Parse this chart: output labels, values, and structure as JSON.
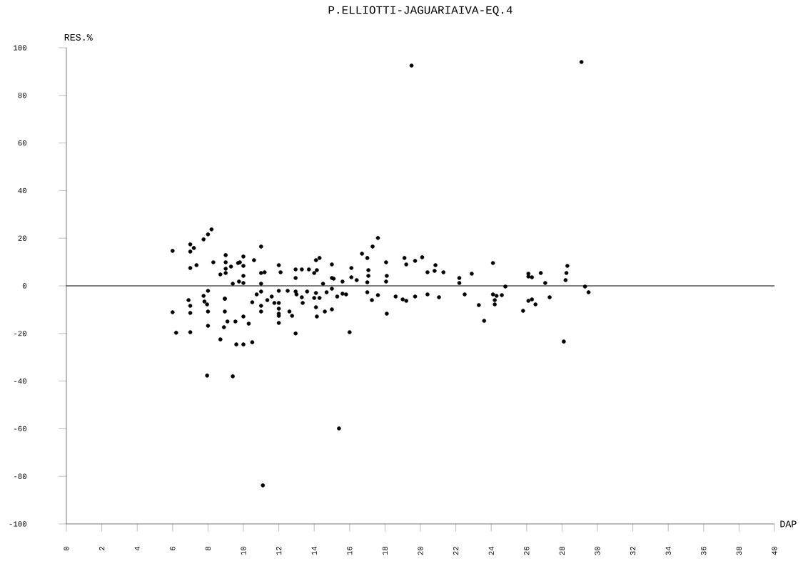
{
  "chart_data": {
    "type": "scatter",
    "title": "P.ELLIOTTI-JAGUARIAIVA-EQ.4",
    "xlabel": "DAP",
    "ylabel": "RES.%",
    "color": "#000000",
    "x": [
      6.0,
      6.0,
      6.2,
      7.0,
      7.0,
      7.2,
      7.0,
      7.35,
      6.9,
      7.0,
      7.0,
      7.0,
      7.75,
      8.0,
      8.2,
      8.3,
      7.75,
      7.8,
      7.95,
      8.0,
      8.0,
      8.0,
      7.95,
      8.7,
      9.0,
      9.0,
      9.0,
      9.0,
      9.3,
      9.7,
      9.8,
      9.75,
      8.95,
      9.4,
      10.0,
      10.0,
      10.0,
      10.0,
      10.6,
      11.0,
      11.0,
      11.2,
      11.0,
      11.0,
      10.75,
      10.5,
      11.0,
      11.0,
      8.95,
      8.95,
      9.1,
      8.9,
      8.7,
      9.55,
      9.6,
      10.0,
      10.0,
      10.3,
      10.5,
      9.4,
      11.35,
      11.6,
      11.75,
      12.0,
      12.1,
      12.0,
      12.0,
      12.0,
      12.0,
      12.0,
      12.0,
      12.5,
      12.6,
      12.75,
      12.95,
      12.95,
      12.95,
      13.0,
      13.3,
      13.3,
      13.35,
      12.95,
      13.7,
      14.1,
      14.15,
      14.0,
      14.1,
      14.15,
      14.0,
      14.3,
      13.6,
      14.1,
      14.3,
      14.6,
      14.5,
      14.7,
      15.0,
      15.0,
      15.1,
      15.0,
      15.3,
      15.0,
      15.6,
      15.6,
      15.8,
      16.0,
      16.1,
      16.1,
      16.4,
      16.7,
      17.0,
      17.3,
      17.6,
      17.06,
      17.06,
      17.0,
      17.0,
      17.26,
      17.6,
      18.06,
      18.1,
      18.06,
      18.1,
      18.6,
      19.0,
      19.2,
      19.1,
      19.2,
      19.7,
      19.7,
      20.1,
      20.4,
      20.4,
      20.85,
      20.8,
      21.05,
      21.3,
      22.2,
      22.2,
      22.5,
      22.9,
      23.3,
      23.6,
      24.1,
      24.1,
      24.3,
      24.2,
      24.2,
      24.6,
      24.8,
      25.8,
      26.1,
      26.1,
      26.3,
      26.1,
      26.3,
      26.5,
      26.8,
      27.05,
      27.3,
      28.3,
      28.25,
      28.2,
      28.1,
      29.3,
      29.5,
      19.5,
      29.1,
      15.4,
      11.1
    ],
    "values": [
      14.7,
      -11.1,
      -19.7,
      17.4,
      14.4,
      15.9,
      7.5,
      8.7,
      -6.0,
      -8.4,
      -11.4,
      -19.5,
      19.5,
      21.6,
      23.7,
      9.9,
      -4.2,
      -6.6,
      -7.8,
      -2.1,
      -10.8,
      -16.8,
      -37.7,
      4.8,
      12.9,
      9.9,
      7.2,
      5.4,
      8.1,
      9.6,
      9.9,
      1.8,
      -5.4,
      0.9,
      12.3,
      8.4,
      4.2,
      1.2,
      10.8,
      16.5,
      5.4,
      5.7,
      0.9,
      -2.4,
      -3.6,
      -6.9,
      -8.4,
      -10.8,
      -10.8,
      -5.4,
      -15.0,
      -17.4,
      -22.5,
      -15.0,
      -24.6,
      -12.9,
      -24.6,
      -15.9,
      -23.7,
      -38.0,
      -6.0,
      -4.5,
      -7.2,
      8.7,
      5.7,
      -2.1,
      -7.2,
      -9.6,
      -11.7,
      -12.6,
      -15.6,
      -2.1,
      -10.8,
      -12.6,
      6.9,
      3.3,
      -2.4,
      -3.6,
      6.9,
      -4.8,
      -7.2,
      -20.0,
      6.9,
      10.8,
      6.6,
      -5.1,
      -9.0,
      -12.9,
      5.4,
      11.7,
      -2.4,
      -3.0,
      -5.1,
      -10.8,
      0.9,
      -2.7,
      9.0,
      3.3,
      3.0,
      -1.2,
      -4.5,
      -9.9,
      1.8,
      -3.3,
      -3.6,
      -19.5,
      7.5,
      3.6,
      2.4,
      13.5,
      11.7,
      16.5,
      20.1,
      6.6,
      4.2,
      1.5,
      -2.7,
      -6.0,
      -3.9,
      9.9,
      4.2,
      1.8,
      -11.7,
      -4.5,
      -5.7,
      -6.3,
      11.7,
      9.0,
      10.5,
      -4.5,
      12.0,
      5.7,
      -3.6,
      8.7,
      6.3,
      -4.8,
      5.7,
      3.3,
      1.2,
      -3.6,
      5.1,
      -8.1,
      -14.7,
      9.6,
      -3.6,
      -4.2,
      -6.0,
      -7.8,
      -3.9,
      -0.3,
      -10.5,
      5.1,
      3.9,
      3.6,
      -6.3,
      -5.7,
      -7.8,
      5.4,
      1.2,
      -4.8,
      8.4,
      5.4,
      2.4,
      -23.4,
      -0.3,
      -2.7,
      92.5,
      94.0,
      -59.9,
      -83.8
    ],
    "xlim": [
      0,
      40
    ],
    "ylim": [
      -100,
      100
    ],
    "xticks": [
      0,
      2,
      4,
      6,
      8,
      10,
      12,
      14,
      16,
      18,
      20,
      22,
      24,
      26,
      28,
      30,
      32,
      34,
      36,
      38,
      40
    ],
    "yticks": [
      -100,
      -80,
      -60,
      -40,
      -20,
      0,
      20,
      40,
      60,
      80,
      100
    ],
    "ref_lines": [
      {
        "axis": "y",
        "value": 0
      }
    ]
  }
}
